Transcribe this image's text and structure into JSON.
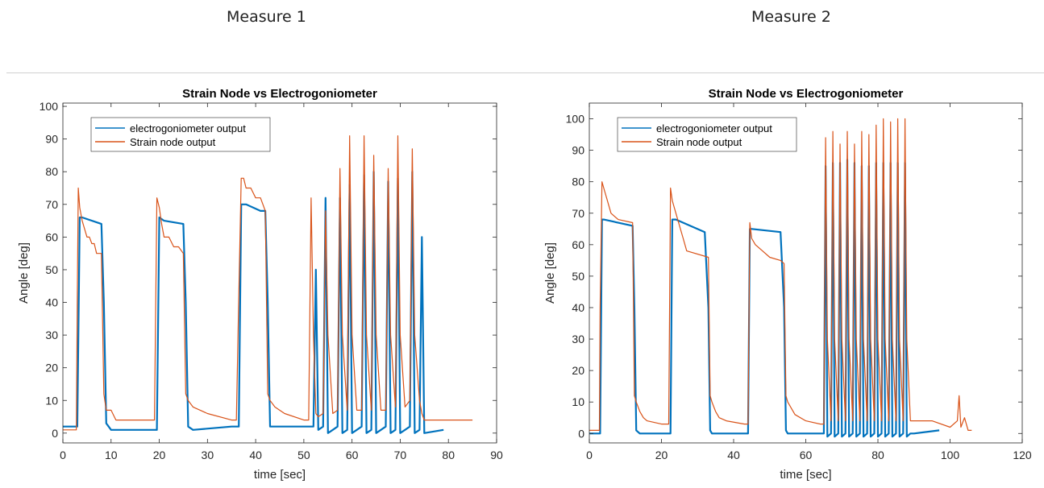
{
  "header": {
    "measure_1": "Measure 1",
    "measure_2": "Measure 2"
  },
  "chart_data": [
    {
      "type": "line",
      "title": "Strain Node vs Electrogoniometer",
      "xlabel": "time [sec]",
      "ylabel": "Angle [deg]",
      "xlim": [
        0,
        90
      ],
      "ylim": [
        -3,
        101
      ],
      "xticks": [
        0,
        10,
        20,
        30,
        40,
        50,
        60,
        70,
        80,
        90
      ],
      "yticks": [
        0,
        10,
        20,
        30,
        40,
        50,
        60,
        70,
        80,
        90,
        100
      ],
      "legend": "top-left",
      "series": [
        {
          "name": "electrogoniometer output",
          "color": "#0072BD",
          "x": [
            0,
            3,
            3.5,
            4,
            8,
            8.5,
            9,
            10,
            18,
            19.5,
            20,
            21,
            25,
            25.5,
            26,
            27,
            35,
            36.5,
            37,
            38,
            41,
            42,
            42.5,
            43,
            51,
            52,
            52.5,
            53,
            54,
            54.5,
            55,
            56,
            57,
            57.5,
            58,
            59,
            59.5,
            60,
            61,
            62,
            62.5,
            63,
            64,
            64.5,
            65,
            66,
            67,
            67.5,
            68,
            69,
            69.5,
            70,
            71,
            72,
            72.5,
            73,
            74,
            74.5,
            75,
            79
          ],
          "y": [
            2,
            2,
            66,
            66,
            64,
            40,
            3,
            1,
            1,
            1,
            66,
            65,
            64,
            40,
            2,
            1,
            2,
            2,
            70,
            70,
            68,
            68,
            40,
            2,
            2,
            2,
            50,
            1,
            2,
            72,
            0,
            1,
            2,
            72,
            0,
            1,
            76,
            0,
            1,
            2,
            79,
            0,
            1,
            80,
            0,
            1,
            2,
            77,
            0,
            1,
            78,
            0,
            1,
            2,
            80,
            0,
            1,
            60,
            0,
            1
          ]
        },
        {
          "name": "Strain node output",
          "color": "#D95319",
          "x": [
            0,
            2.8,
            3,
            3.2,
            3.5,
            4,
            5,
            5.5,
            6,
            6.5,
            7,
            8,
            8.5,
            9,
            9.5,
            10,
            11,
            12,
            19,
            19.5,
            20,
            20.5,
            21,
            22,
            23,
            24,
            25,
            25.5,
            26,
            27,
            30,
            35,
            36,
            36.5,
            37,
            37.5,
            38,
            39,
            40,
            41,
            42,
            42.5,
            43,
            44,
            46,
            50,
            51,
            51.5,
            52,
            52.5,
            53,
            54,
            54.5,
            55,
            56,
            57,
            57.5,
            58,
            59,
            59.5,
            60,
            61,
            62,
            62.5,
            63,
            64,
            64.5,
            65,
            66,
            67,
            67.5,
            68,
            69,
            69.5,
            70,
            71,
            72,
            72.5,
            73,
            74,
            74.5,
            75,
            80,
            85
          ],
          "y": [
            1,
            1,
            42,
            75,
            69,
            65,
            60,
            60,
            58,
            58,
            55,
            55,
            12,
            7,
            7,
            7,
            4,
            4,
            4,
            72,
            69,
            64,
            60,
            60,
            57,
            57,
            55,
            12,
            10,
            8,
            6,
            4,
            4,
            42,
            78,
            78,
            75,
            75,
            72,
            72,
            68,
            12,
            10,
            8,
            6,
            4,
            4,
            72,
            30,
            6,
            5,
            6,
            68,
            30,
            6,
            7,
            81,
            30,
            7,
            91,
            30,
            7,
            7,
            91,
            30,
            7,
            85,
            30,
            7,
            7,
            81,
            30,
            8,
            91,
            30,
            8,
            10,
            87,
            30,
            10,
            6,
            4,
            4,
            4
          ]
        }
      ]
    },
    {
      "type": "line",
      "title": "Strain Node vs Electrogoniometer",
      "xlabel": "time [sec]",
      "ylabel": "Angle [deg]",
      "xlim": [
        0,
        120
      ],
      "ylim": [
        -3,
        105
      ],
      "xticks": [
        0,
        20,
        40,
        60,
        80,
        100,
        120
      ],
      "yticks": [
        0,
        10,
        20,
        30,
        40,
        50,
        60,
        70,
        80,
        90,
        100
      ],
      "legend": "top-left",
      "series": [
        {
          "name": "electrogoniometer output",
          "color": "#0072BD",
          "x": [
            0,
            3,
            3.5,
            4,
            12,
            12.5,
            13,
            14,
            22,
            22.5,
            23,
            24,
            32,
            33,
            33.5,
            34,
            43,
            44,
            44.5,
            45,
            53,
            54,
            54.5,
            55,
            64,
            65,
            65.5,
            66,
            67,
            67.5,
            68,
            69,
            69.5,
            70,
            71,
            71.5,
            72,
            73,
            73.5,
            74,
            75,
            75.5,
            76,
            77,
            77.5,
            78,
            79,
            79.5,
            80,
            81,
            81.5,
            82,
            83,
            83.5,
            84,
            85,
            85.5,
            86,
            87,
            87.5,
            88,
            89,
            90,
            97
          ],
          "y": [
            0,
            0,
            68,
            68,
            66,
            40,
            1,
            0,
            0,
            0,
            68,
            68,
            64,
            40,
            1,
            0,
            0,
            0,
            65,
            65,
            64,
            40,
            1,
            0,
            0,
            0,
            85,
            -1,
            0,
            86,
            -1,
            0,
            86,
            -1,
            0,
            87,
            -1,
            0,
            86,
            -1,
            0,
            85,
            -1,
            0,
            85,
            -1,
            0,
            86,
            -1,
            0,
            86,
            -1,
            0,
            86,
            -1,
            0,
            86,
            -1,
            0,
            86,
            -1,
            0,
            0,
            1
          ]
        },
        {
          "name": "Strain node output",
          "color": "#D95319",
          "x": [
            0,
            2.8,
            3,
            3.5,
            4,
            5,
            6,
            7,
            8,
            12,
            12.5,
            13,
            14,
            15,
            16,
            20,
            22,
            22.5,
            23,
            24,
            25,
            26,
            27,
            33,
            33.5,
            34,
            35,
            36,
            38,
            43,
            44,
            44.5,
            45,
            46,
            48,
            50,
            53,
            54,
            54.5,
            55,
            57,
            60,
            64,
            65,
            65.5,
            66,
            67,
            67.5,
            68,
            69,
            69.5,
            70,
            71,
            71.5,
            72,
            73,
            73.5,
            74,
            75,
            75.5,
            76,
            77,
            77.5,
            78,
            79,
            79.5,
            80,
            81,
            81.5,
            82,
            83,
            83.5,
            84,
            85,
            85.5,
            86,
            87,
            87.5,
            88,
            89,
            95,
            100,
            102,
            102.5,
            103,
            104,
            105,
            106
          ],
          "y": [
            1,
            1,
            40,
            80,
            78,
            74,
            70,
            69,
            68,
            67,
            12,
            10,
            7,
            5,
            4,
            3,
            3,
            78,
            74,
            70,
            66,
            62,
            58,
            56,
            12,
            10,
            7,
            5,
            4,
            3,
            3,
            67,
            62,
            60,
            58,
            56,
            55,
            54,
            12,
            10,
            6,
            4,
            3,
            3,
            94,
            30,
            4,
            96,
            30,
            4,
            92,
            30,
            4,
            96,
            30,
            4,
            92,
            30,
            4,
            96,
            30,
            4,
            95,
            30,
            4,
            98,
            30,
            4,
            100,
            30,
            4,
            99,
            30,
            4,
            100,
            30,
            4,
            100,
            30,
            4,
            4,
            2,
            4,
            12,
            2,
            5,
            1,
            1
          ]
        }
      ]
    }
  ]
}
